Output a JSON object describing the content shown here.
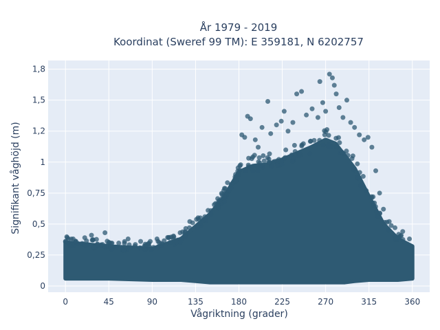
{
  "chart_data": {
    "type": "scatter",
    "title": "År 1979 - 2019",
    "subtitle": "Koordinat (Sweref 99 TM): E 359181, N 6202757",
    "xlabel": "Vågriktning (grader)",
    "ylabel": "Signifikant våghöjd (m)",
    "xlim": [
      -18,
      378
    ],
    "ylim": [
      -0.05,
      1.82
    ],
    "xticks": [
      0,
      45,
      90,
      135,
      180,
      225,
      270,
      315,
      360
    ],
    "xtick_labels": [
      "0",
      "45",
      "90",
      "135",
      "180",
      "225",
      "270",
      "315",
      "360"
    ],
    "yticks": [
      0,
      0.25,
      0.5,
      0.75,
      1,
      1.25,
      1.5,
      1.75
    ],
    "ytick_labels": [
      "0",
      "0,25",
      "0,5",
      "0,75",
      "1",
      "1,2",
      "1,5",
      "1,8"
    ],
    "grid": true,
    "marker_color": "#2e5a73",
    "plot_background": "#e5ecf6",
    "envelope": {
      "x": [
        0,
        45,
        90,
        120,
        135,
        150,
        165,
        180,
        195,
        210,
        225,
        240,
        255,
        270,
        280,
        290,
        300,
        315,
        330,
        345,
        360
      ],
      "y_min": [
        0.06,
        0.06,
        0.05,
        0.05,
        0.04,
        0.03,
        0.03,
        0.03,
        0.03,
        0.03,
        0.03,
        0.03,
        0.03,
        0.03,
        0.03,
        0.03,
        0.04,
        0.05,
        0.05,
        0.05,
        0.06
      ],
      "y_max": [
        0.35,
        0.32,
        0.3,
        0.38,
        0.48,
        0.58,
        0.72,
        0.92,
        0.97,
        0.98,
        1.02,
        1.07,
        1.12,
        1.18,
        1.15,
        1.05,
        0.95,
        0.72,
        0.5,
        0.38,
        0.32
      ]
    },
    "outliers": [
      {
        "x": 2,
        "y": 0.39
      },
      {
        "x": 8,
        "y": 0.38
      },
      {
        "x": 20,
        "y": 0.39
      },
      {
        "x": 27,
        "y": 0.41
      },
      {
        "x": 41,
        "y": 0.43
      },
      {
        "x": 65,
        "y": 0.38
      },
      {
        "x": 78,
        "y": 0.36
      },
      {
        "x": 88,
        "y": 0.36
      },
      {
        "x": 95,
        "y": 0.38
      },
      {
        "x": 107,
        "y": 0.39
      },
      {
        "x": 112,
        "y": 0.38
      },
      {
        "x": 119,
        "y": 0.43
      },
      {
        "x": 129,
        "y": 0.52
      },
      {
        "x": 132,
        "y": 0.51
      },
      {
        "x": 140,
        "y": 0.55
      },
      {
        "x": 148,
        "y": 0.61
      },
      {
        "x": 158,
        "y": 0.65
      },
      {
        "x": 165,
        "y": 0.72
      },
      {
        "x": 172,
        "y": 0.79
      },
      {
        "x": 176,
        "y": 0.88
      },
      {
        "x": 181,
        "y": 0.97
      },
      {
        "x": 183,
        "y": 1.22
      },
      {
        "x": 186,
        "y": 1.2
      },
      {
        "x": 189,
        "y": 1.37
      },
      {
        "x": 192,
        "y": 1.35
      },
      {
        "x": 197,
        "y": 1.18
      },
      {
        "x": 200,
        "y": 1.12
      },
      {
        "x": 204,
        "y": 1.28
      },
      {
        "x": 210,
        "y": 1.49
      },
      {
        "x": 213,
        "y": 1.23
      },
      {
        "x": 219,
        "y": 1.3
      },
      {
        "x": 224,
        "y": 1.33
      },
      {
        "x": 227,
        "y": 1.41
      },
      {
        "x": 231,
        "y": 1.25
      },
      {
        "x": 236,
        "y": 1.32
      },
      {
        "x": 240,
        "y": 1.55
      },
      {
        "x": 245,
        "y": 1.57
      },
      {
        "x": 250,
        "y": 1.38
      },
      {
        "x": 256,
        "y": 1.43
      },
      {
        "x": 262,
        "y": 1.36
      },
      {
        "x": 264,
        "y": 1.65
      },
      {
        "x": 267,
        "y": 1.48
      },
      {
        "x": 270,
        "y": 1.41
      },
      {
        "x": 274,
        "y": 1.71
      },
      {
        "x": 277,
        "y": 1.68
      },
      {
        "x": 279,
        "y": 1.62
      },
      {
        "x": 281,
        "y": 1.55
      },
      {
        "x": 284,
        "y": 1.44
      },
      {
        "x": 288,
        "y": 1.36
      },
      {
        "x": 292,
        "y": 1.5
      },
      {
        "x": 296,
        "y": 1.32
      },
      {
        "x": 300,
        "y": 1.28
      },
      {
        "x": 305,
        "y": 1.22
      },
      {
        "x": 310,
        "y": 1.18
      },
      {
        "x": 314,
        "y": 1.2
      },
      {
        "x": 318,
        "y": 1.12
      },
      {
        "x": 322,
        "y": 0.93
      },
      {
        "x": 326,
        "y": 0.75
      },
      {
        "x": 330,
        "y": 0.62
      },
      {
        "x": 336,
        "y": 0.52
      },
      {
        "x": 342,
        "y": 0.47
      },
      {
        "x": 350,
        "y": 0.44
      },
      {
        "x": 357,
        "y": 0.38
      }
    ]
  }
}
